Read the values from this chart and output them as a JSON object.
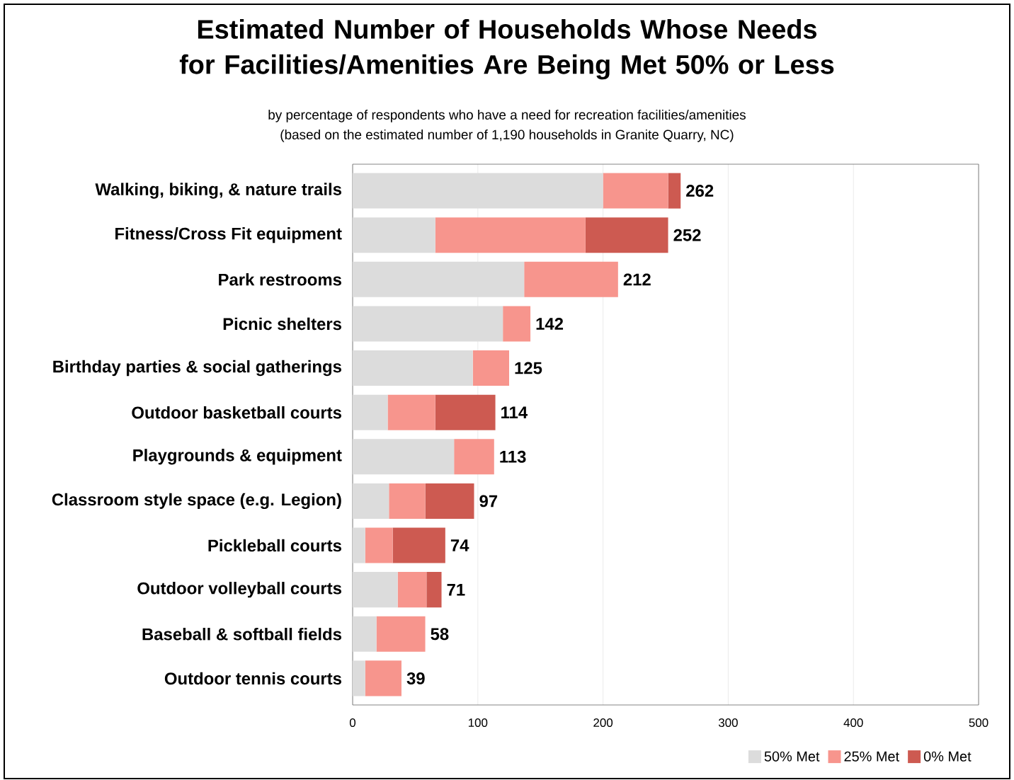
{
  "chart_data": {
    "type": "bar",
    "orientation": "horizontal",
    "stacked": true,
    "title": "Estimated Number of Households Whose Needs for Facilities/Amenities Are Being Met 50% or Less",
    "subtitle": "by percentage of respondents who have a need for recreation facilities/amenities",
    "annotations": [
      "(based on the estimated number of 1,190 households in Granite Quarry, NC)"
    ],
    "categories": [
      "Walking, biking, & nature trails",
      "Fitness/Cross Fit equipment",
      "Park restrooms",
      "Picnic shelters",
      "Birthday parties & social gatherings",
      "Outdoor basketball courts",
      "Playgrounds & equipment",
      "Classroom style space (e.g. Legion)",
      "Pickleball courts",
      "Outdoor volleyball courts",
      "Baseball & softball fields",
      "Outdoor tennis courts"
    ],
    "series": [
      {
        "name": "50% Met",
        "color": "#dcdcdc",
        "values": [
          200,
          66,
          137,
          120,
          96,
          28,
          81,
          29,
          10,
          36,
          19,
          10
        ]
      },
      {
        "name": "25% Met",
        "color": "#f7958d",
        "values": [
          52,
          120,
          75,
          22,
          29,
          38,
          32,
          29,
          22,
          23,
          39,
          29
        ]
      },
      {
        "name": "0% Met",
        "color": "#cd5a51",
        "values": [
          10,
          66,
          0,
          0,
          0,
          48,
          0,
          39,
          42,
          12,
          0,
          0
        ]
      }
    ],
    "totals": [
      "262",
      "252",
      "212",
      "142",
      "125",
      "114",
      "113",
      "97",
      "74",
      "71",
      "58",
      "39"
    ],
    "xlim": [
      0,
      500
    ],
    "xticks": [
      0,
      100,
      200,
      300,
      400,
      500
    ],
    "grid": "x",
    "legend": "bottom right"
  }
}
